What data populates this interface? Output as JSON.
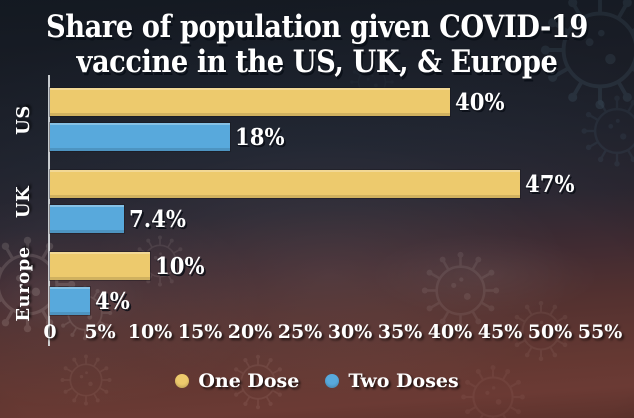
{
  "title": {
    "line1": "Share of population given COVID-19",
    "line2": "vaccine in the US, UK, & Europe"
  },
  "chart_data": {
    "type": "bar",
    "orientation": "horizontal",
    "title": "Share of population given COVID-19 vaccine in the US, UK, & Europe",
    "categories": [
      "US",
      "UK",
      "Europe"
    ],
    "series": [
      {
        "name": "One Dose",
        "color": "#edca6d",
        "values": [
          40,
          47,
          10
        ],
        "labels": [
          "40%",
          "47%",
          "10%"
        ]
      },
      {
        "name": "Two Doses",
        "color": "#58a9dc",
        "values": [
          18,
          7.4,
          4
        ],
        "labels": [
          "18%",
          "7.4%",
          "4%"
        ]
      }
    ],
    "x_ticks": [
      {
        "value": 0,
        "label": "0"
      },
      {
        "value": 5,
        "label": "5%"
      },
      {
        "value": 10,
        "label": "10%"
      },
      {
        "value": 15,
        "label": "15%"
      },
      {
        "value": 20,
        "label": "20%"
      },
      {
        "value": 25,
        "label": "25%"
      },
      {
        "value": 30,
        "label": "30%"
      },
      {
        "value": 35,
        "label": "35%"
      },
      {
        "value": 40,
        "label": "40%"
      },
      {
        "value": 45,
        "label": "45%"
      },
      {
        "value": 50,
        "label": "50%"
      },
      {
        "value": 55,
        "label": "55%"
      }
    ],
    "xlim": [
      0,
      56
    ],
    "grid": false,
    "legend_position": "bottom"
  },
  "colors": {
    "background_top": "#16222e",
    "background_bottom": "#6b3a34",
    "bar_one_dose": "#edca6d",
    "bar_two_doses": "#58a9dc",
    "text": "#ffffff",
    "axis_line": "#dee2e5"
  }
}
